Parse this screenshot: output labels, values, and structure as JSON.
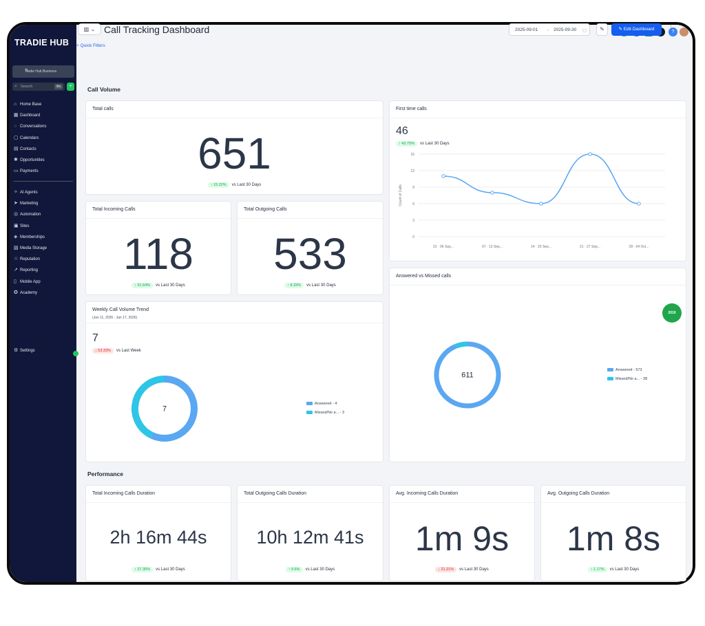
{
  "brand": {
    "logo": "TRADIE HUB"
  },
  "sidebar": {
    "account": "Tradie Hub Business",
    "search": {
      "placeholder": "Search",
      "shortcut": "⌘K"
    },
    "items": [
      {
        "label": "Home Base",
        "icon": "home-icon"
      },
      {
        "label": "Dashboard",
        "icon": "dashboard-icon"
      },
      {
        "label": "Conversations",
        "icon": "chat-icon"
      },
      {
        "label": "Calendars",
        "icon": "calendar-icon"
      },
      {
        "label": "Contacts",
        "icon": "contacts-icon"
      },
      {
        "label": "Opportunities",
        "icon": "opportunities-icon"
      },
      {
        "label": "Payments",
        "icon": "payments-icon"
      }
    ],
    "items2": [
      {
        "label": "AI Agents",
        "icon": "ai-agents-icon"
      },
      {
        "label": "Marketing",
        "icon": "marketing-icon"
      },
      {
        "label": "Automation",
        "icon": "automation-icon"
      },
      {
        "label": "Sites",
        "icon": "sites-icon"
      },
      {
        "label": "Memberships",
        "icon": "memberships-icon"
      },
      {
        "label": "Media Storage",
        "icon": "media-icon"
      },
      {
        "label": "Reputation",
        "icon": "reputation-icon"
      },
      {
        "label": "Reporting",
        "icon": "reporting-icon"
      },
      {
        "label": "Mobile App",
        "icon": "mobile-icon"
      },
      {
        "label": "Academy",
        "icon": "academy-icon"
      }
    ],
    "settings": "Settings"
  },
  "header": {
    "title": "Call Tracking Dashboard",
    "quick_filters": "+ Quick Filters",
    "date_from": "2025-09-01",
    "date_arrow": "→",
    "date_to": "2025-09-30",
    "edit_button": "Edit Dashboard"
  },
  "sections": {
    "call_volume": "Call Volume",
    "performance": "Performance"
  },
  "cards": {
    "total_calls": {
      "title": "Total calls",
      "value": "651",
      "change": "15.22%",
      "direction": "up",
      "period": "vs Last 30 Days"
    },
    "incoming": {
      "title": "Total Incoming Calls",
      "value": "118",
      "change": "61.64%",
      "direction": "up",
      "period": "vs Last 30 Days"
    },
    "outgoing": {
      "title": "Total Outgoing Calls",
      "value": "533",
      "change": "8.33%",
      "direction": "up",
      "period": "vs Last 30 Days"
    },
    "first_time": {
      "title": "First time calls",
      "value": "46",
      "change": "43.75%",
      "direction": "up",
      "period": "vs Last 30 Days"
    },
    "weekly": {
      "title": "Weekly Call Volume Trend",
      "subtitle": "(Jan 11, 2026 - Jan 17, 2026)",
      "value": "7",
      "change": "53.33%",
      "direction": "down",
      "period": "vs Last Week"
    },
    "answered_missed": {
      "title": "Answered vs Missed calls"
    },
    "in_duration": {
      "title": "Total Incoming Calls Duration",
      "value": "2h 16m 44s",
      "change": "27.35%",
      "direction": "up",
      "period": "vs Last 30 Days"
    },
    "out_duration": {
      "title": "Total Outgoing Calls Duration",
      "value": "10h 12m 41s",
      "change": "9.6%",
      "direction": "up",
      "period": "vs Last 30 Days"
    },
    "avg_in": {
      "title": "Avg. Incoming Calls Duration",
      "value": "1m 9s",
      "change": "21.21%",
      "direction": "down",
      "period": "vs Last 30 Days"
    },
    "avg_out": {
      "title": "Avg. Outgoing Calls Duration",
      "value": "1m 8s",
      "change": "1.17%",
      "direction": "up",
      "period": "vs Last 30 Days"
    }
  },
  "fab_label": "2019",
  "colors": {
    "answered": "#5aa7f2",
    "missed": "#2ec5e6",
    "line": "#5aa7f2",
    "primary": "#155eef",
    "sidebar": "#11173a"
  },
  "chart_data": [
    {
      "type": "line",
      "title": "First time calls",
      "ylabel": "Count of Calls",
      "categories": [
        "31 · 06 Sep...",
        "07 · 13 Sep...",
        "14 · 20 Sep...",
        "21 · 27 Sep...",
        "28 · 04 Oct..."
      ],
      "values": [
        11,
        8,
        6,
        15,
        6
      ],
      "yticks": [
        "0",
        "3",
        "6",
        "9",
        "12",
        "15"
      ],
      "ylim": [
        0,
        15
      ],
      "grid": true
    },
    {
      "type": "pie",
      "title": "Weekly Call Volume Trend",
      "total": "7",
      "slices": [
        {
          "label": "Answered - 4",
          "value": 4
        },
        {
          "label": "Missed/No a... - 3",
          "value": 3
        }
      ]
    },
    {
      "type": "pie",
      "title": "Answered vs Missed calls",
      "total": "611",
      "slices": [
        {
          "label": "Answered - 573",
          "value": 573
        },
        {
          "label": "Missed/No a... - 38",
          "value": 38
        }
      ]
    }
  ]
}
